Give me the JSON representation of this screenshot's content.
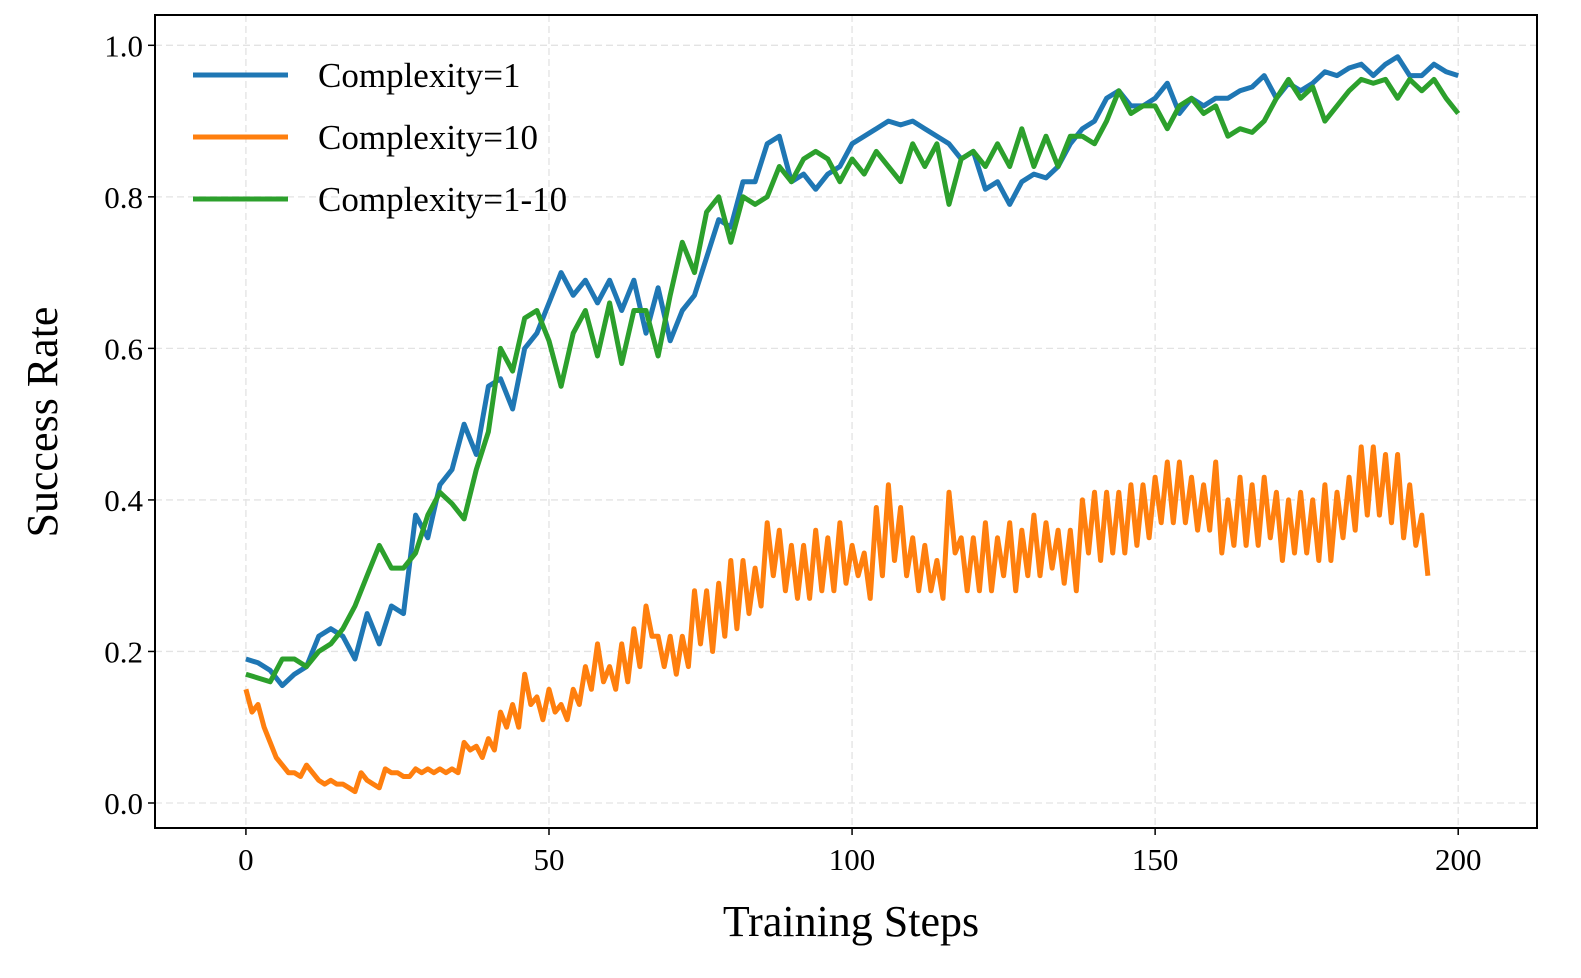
{
  "chart_data": {
    "type": "line",
    "title": "",
    "xlabel": "Training Steps",
    "ylabel": "Success Rate",
    "xlim": [
      -15,
      213
    ],
    "ylim": [
      -0.033,
      1.04
    ],
    "xticks": [
      0,
      50,
      100,
      150,
      200
    ],
    "xtick_labels": [
      "0",
      "50",
      "100",
      "150",
      "200"
    ],
    "yticks": [
      0.0,
      0.2,
      0.4,
      0.6,
      0.8,
      1.0
    ],
    "ytick_labels": [
      "0.0",
      "0.2",
      "0.4",
      "0.6",
      "0.8",
      "1.0"
    ],
    "grid": true,
    "legend_position": "top-left",
    "series": [
      {
        "name": "Complexity=1",
        "color": "#1f77b4",
        "x": [
          0,
          2,
          4,
          6,
          8,
          10,
          12,
          14,
          16,
          18,
          20,
          22,
          24,
          26,
          28,
          30,
          32,
          34,
          36,
          38,
          40,
          42,
          44,
          46,
          48,
          50,
          52,
          54,
          56,
          58,
          60,
          62,
          64,
          66,
          68,
          70,
          72,
          74,
          76,
          78,
          80,
          82,
          84,
          86,
          88,
          90,
          92,
          94,
          96,
          98,
          100,
          102,
          104,
          106,
          108,
          110,
          112,
          114,
          116,
          118,
          120,
          122,
          124,
          126,
          128,
          130,
          132,
          134,
          136,
          138,
          140,
          142,
          144,
          146,
          148,
          150,
          152,
          154,
          156,
          158,
          160,
          162,
          164,
          166,
          168,
          170,
          172,
          174,
          176,
          178,
          180,
          182,
          184,
          186,
          188,
          190,
          192,
          194,
          196,
          198,
          200
        ],
        "y": [
          0.19,
          0.185,
          0.175,
          0.155,
          0.17,
          0.18,
          0.22,
          0.23,
          0.22,
          0.19,
          0.25,
          0.21,
          0.26,
          0.25,
          0.38,
          0.35,
          0.42,
          0.44,
          0.5,
          0.46,
          0.55,
          0.56,
          0.52,
          0.6,
          0.62,
          0.66,
          0.7,
          0.67,
          0.69,
          0.66,
          0.69,
          0.65,
          0.69,
          0.62,
          0.68,
          0.61,
          0.65,
          0.67,
          0.72,
          0.77,
          0.76,
          0.82,
          0.82,
          0.87,
          0.88,
          0.82,
          0.83,
          0.81,
          0.83,
          0.84,
          0.87,
          0.88,
          0.89,
          0.9,
          0.895,
          0.9,
          0.89,
          0.88,
          0.87,
          0.85,
          0.86,
          0.81,
          0.82,
          0.79,
          0.82,
          0.83,
          0.825,
          0.84,
          0.87,
          0.89,
          0.9,
          0.93,
          0.94,
          0.92,
          0.92,
          0.93,
          0.95,
          0.91,
          0.93,
          0.92,
          0.93,
          0.93,
          0.94,
          0.945,
          0.96,
          0.93,
          0.95,
          0.94,
          0.95,
          0.965,
          0.96,
          0.97,
          0.975,
          0.96,
          0.975,
          0.985,
          0.96,
          0.96,
          0.975,
          0.965,
          0.96
        ]
      },
      {
        "name": "Complexity=10",
        "color": "#ff7f0e",
        "x": [
          0,
          1,
          2,
          3,
          4,
          5,
          6,
          7,
          8,
          9,
          10,
          11,
          12,
          13,
          14,
          15,
          16,
          17,
          18,
          19,
          20,
          21,
          22,
          23,
          24,
          25,
          26,
          27,
          28,
          29,
          30,
          31,
          32,
          33,
          34,
          35,
          36,
          37,
          38,
          39,
          40,
          41,
          42,
          43,
          44,
          45,
          46,
          47,
          48,
          49,
          50,
          51,
          52,
          53,
          54,
          55,
          56,
          57,
          58,
          59,
          60,
          61,
          62,
          63,
          64,
          65,
          66,
          67,
          68,
          69,
          70,
          71,
          72,
          73,
          74,
          75,
          76,
          77,
          78,
          79,
          80,
          81,
          82,
          83,
          84,
          85,
          86,
          87,
          88,
          89,
          90,
          91,
          92,
          93,
          94,
          95,
          96,
          97,
          98,
          99,
          100,
          101,
          102,
          103,
          104,
          105,
          106,
          107,
          108,
          109,
          110,
          111,
          112,
          113,
          114,
          115,
          116,
          117,
          118,
          119,
          120,
          121,
          122,
          123,
          124,
          125,
          126,
          127,
          128,
          129,
          130,
          131,
          132,
          133,
          134,
          135,
          136,
          137,
          138,
          139,
          140,
          141,
          142,
          143,
          144,
          145,
          146,
          147,
          148,
          149,
          150,
          151,
          152,
          153,
          154,
          155,
          156,
          157,
          158,
          159,
          160,
          161,
          162,
          163,
          164,
          165,
          166,
          167,
          168,
          169,
          170,
          171,
          172,
          173,
          174,
          175,
          176,
          177,
          178,
          179,
          180,
          181,
          182,
          183,
          184,
          185,
          186,
          187,
          188,
          189,
          190,
          191,
          192,
          193,
          194,
          195
        ],
        "y": [
          0.15,
          0.12,
          0.13,
          0.1,
          0.08,
          0.06,
          0.05,
          0.04,
          0.04,
          0.035,
          0.05,
          0.04,
          0.03,
          0.025,
          0.03,
          0.025,
          0.025,
          0.02,
          0.015,
          0.04,
          0.03,
          0.025,
          0.02,
          0.045,
          0.04,
          0.04,
          0.035,
          0.035,
          0.045,
          0.04,
          0.045,
          0.04,
          0.045,
          0.04,
          0.045,
          0.04,
          0.08,
          0.07,
          0.075,
          0.06,
          0.085,
          0.07,
          0.12,
          0.1,
          0.13,
          0.1,
          0.17,
          0.13,
          0.14,
          0.11,
          0.15,
          0.12,
          0.13,
          0.11,
          0.15,
          0.13,
          0.18,
          0.15,
          0.21,
          0.16,
          0.18,
          0.15,
          0.21,
          0.16,
          0.23,
          0.18,
          0.26,
          0.22,
          0.22,
          0.18,
          0.22,
          0.17,
          0.22,
          0.18,
          0.28,
          0.21,
          0.28,
          0.2,
          0.29,
          0.22,
          0.32,
          0.23,
          0.32,
          0.25,
          0.31,
          0.26,
          0.37,
          0.3,
          0.36,
          0.28,
          0.34,
          0.27,
          0.34,
          0.27,
          0.36,
          0.28,
          0.35,
          0.28,
          0.37,
          0.29,
          0.34,
          0.3,
          0.33,
          0.27,
          0.39,
          0.3,
          0.42,
          0.32,
          0.39,
          0.3,
          0.35,
          0.28,
          0.34,
          0.28,
          0.32,
          0.27,
          0.41,
          0.33,
          0.35,
          0.28,
          0.35,
          0.28,
          0.37,
          0.28,
          0.35,
          0.3,
          0.37,
          0.28,
          0.36,
          0.3,
          0.38,
          0.3,
          0.37,
          0.31,
          0.36,
          0.29,
          0.36,
          0.28,
          0.4,
          0.33,
          0.41,
          0.32,
          0.41,
          0.33,
          0.41,
          0.33,
          0.42,
          0.34,
          0.42,
          0.35,
          0.43,
          0.37,
          0.45,
          0.37,
          0.45,
          0.37,
          0.43,
          0.36,
          0.42,
          0.36,
          0.45,
          0.33,
          0.4,
          0.34,
          0.43,
          0.34,
          0.42,
          0.34,
          0.43,
          0.35,
          0.41,
          0.32,
          0.4,
          0.33,
          0.41,
          0.33,
          0.4,
          0.32,
          0.42,
          0.32,
          0.41,
          0.35,
          0.43,
          0.36,
          0.47,
          0.38,
          0.47,
          0.38,
          0.46,
          0.37,
          0.46,
          0.35,
          0.42,
          0.34,
          0.38,
          0.3
        ]
      },
      {
        "name": "Complexity=1-10",
        "color": "#2ca02c",
        "x": [
          0,
          2,
          4,
          6,
          8,
          10,
          12,
          14,
          16,
          18,
          20,
          22,
          24,
          26,
          28,
          30,
          32,
          34,
          36,
          38,
          40,
          42,
          44,
          46,
          48,
          50,
          52,
          54,
          56,
          58,
          60,
          62,
          64,
          66,
          68,
          70,
          72,
          74,
          76,
          78,
          80,
          82,
          84,
          86,
          88,
          90,
          92,
          94,
          96,
          98,
          100,
          102,
          104,
          106,
          108,
          110,
          112,
          114,
          116,
          118,
          120,
          122,
          124,
          126,
          128,
          130,
          132,
          134,
          136,
          138,
          140,
          142,
          144,
          146,
          148,
          150,
          152,
          154,
          156,
          158,
          160,
          162,
          164,
          166,
          168,
          170,
          172,
          174,
          176,
          178,
          180,
          182,
          184,
          186,
          188,
          190,
          192,
          194,
          196,
          198,
          200
        ],
        "y": [
          0.17,
          0.165,
          0.16,
          0.19,
          0.19,
          0.18,
          0.2,
          0.21,
          0.23,
          0.26,
          0.3,
          0.34,
          0.31,
          0.31,
          0.33,
          0.38,
          0.41,
          0.395,
          0.375,
          0.44,
          0.49,
          0.6,
          0.57,
          0.64,
          0.65,
          0.61,
          0.55,
          0.62,
          0.65,
          0.59,
          0.66,
          0.58,
          0.65,
          0.65,
          0.59,
          0.67,
          0.74,
          0.7,
          0.78,
          0.8,
          0.74,
          0.8,
          0.79,
          0.8,
          0.84,
          0.82,
          0.85,
          0.86,
          0.85,
          0.82,
          0.85,
          0.83,
          0.86,
          0.84,
          0.82,
          0.87,
          0.84,
          0.87,
          0.79,
          0.85,
          0.86,
          0.84,
          0.87,
          0.84,
          0.89,
          0.84,
          0.88,
          0.84,
          0.88,
          0.88,
          0.87,
          0.9,
          0.94,
          0.91,
          0.92,
          0.92,
          0.89,
          0.92,
          0.93,
          0.91,
          0.92,
          0.88,
          0.89,
          0.885,
          0.9,
          0.93,
          0.955,
          0.93,
          0.945,
          0.9,
          0.92,
          0.94,
          0.955,
          0.95,
          0.955,
          0.93,
          0.955,
          0.94,
          0.955,
          0.93,
          0.91
        ]
      }
    ]
  }
}
